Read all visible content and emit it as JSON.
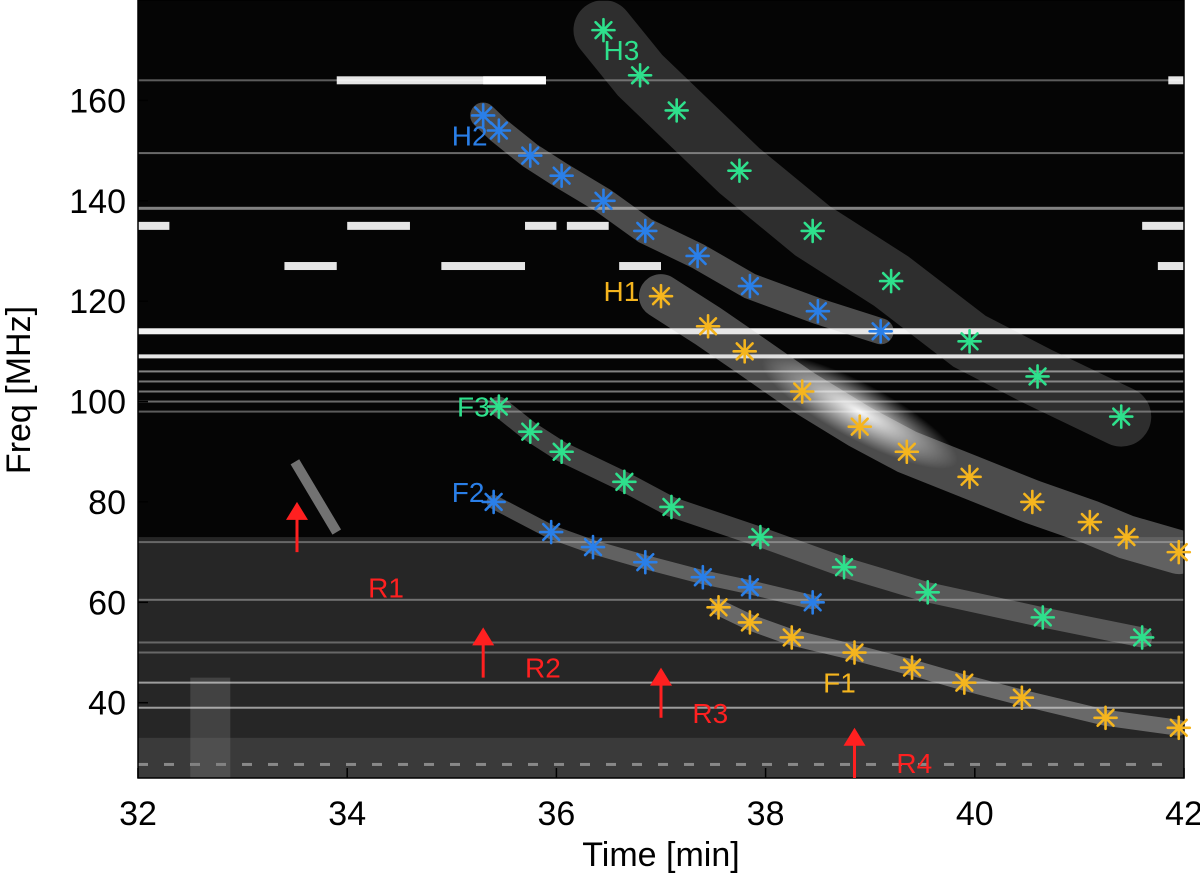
{
  "chart_data": {
    "type": "scatter",
    "title": "",
    "xlabel": "Time [min]",
    "ylabel": "Freq [MHz]",
    "xlim": [
      32,
      42
    ],
    "ylim": [
      25,
      180
    ],
    "xticks": [
      32,
      34,
      36,
      38,
      40,
      42
    ],
    "yticks": [
      40,
      60,
      80,
      100,
      120,
      140,
      160
    ],
    "background": "dynamic spectrum (grayscale)",
    "grid": false,
    "legend": "none",
    "series": [
      {
        "name": "H3",
        "color": "#2ee08c",
        "x": [
          36.45,
          36.8,
          37.15,
          37.75,
          38.45,
          39.2,
          39.95,
          40.6,
          41.4
        ],
        "y": [
          174,
          165,
          158,
          146,
          134,
          124,
          112,
          105,
          97
        ]
      },
      {
        "name": "H2",
        "color": "#2a7fe8",
        "x": [
          35.3,
          35.45,
          35.75,
          36.05,
          36.45,
          36.85,
          37.35,
          37.85,
          38.5,
          39.1
        ],
        "y": [
          157,
          154,
          149,
          145,
          140,
          134,
          129,
          123,
          118,
          114
        ]
      },
      {
        "name": "H1",
        "color": "#f5b51e",
        "x": [
          37.0,
          37.45,
          37.8,
          38.35,
          38.9,
          39.35,
          39.95,
          40.55,
          41.1,
          41.45,
          41.95
        ],
        "y": [
          121,
          115,
          110,
          102,
          95,
          90,
          85,
          80,
          76,
          73,
          70
        ]
      },
      {
        "name": "F3",
        "color": "#2ee08c",
        "x": [
          35.45,
          35.75,
          36.05,
          36.65,
          37.1,
          37.95,
          38.75,
          39.55,
          40.65,
          41.6
        ],
        "y": [
          99,
          94,
          90,
          84,
          79,
          73,
          67,
          62,
          57,
          53
        ]
      },
      {
        "name": "F2",
        "color": "#2a7fe8",
        "x": [
          35.4,
          35.95,
          36.35,
          36.85,
          37.4,
          37.85,
          38.45
        ],
        "y": [
          80,
          74,
          71,
          68,
          65,
          63,
          60
        ]
      },
      {
        "name": "F1",
        "color": "#f5b51e",
        "x": [
          37.55,
          37.85,
          38.25,
          38.85,
          39.4,
          39.9,
          40.45,
          41.25,
          41.95
        ],
        "y": [
          59,
          56,
          53,
          50,
          47,
          44,
          41,
          37,
          35
        ]
      }
    ],
    "annotations": [
      {
        "text": "H3",
        "x": 36.45,
        "y": 168,
        "color": "#2ee08c"
      },
      {
        "text": "H2",
        "x": 35.0,
        "y": 151,
        "color": "#2a7fe8"
      },
      {
        "text": "H1",
        "x": 36.45,
        "y": 120,
        "color": "#f5b51e"
      },
      {
        "text": "F3",
        "x": 35.05,
        "y": 97,
        "color": "#2ee08c"
      },
      {
        "text": "F2",
        "x": 35.0,
        "y": 80,
        "color": "#2a7fe8"
      },
      {
        "text": "F1",
        "x": 38.55,
        "y": 42,
        "color": "#f5b51e"
      },
      {
        "text": "R1",
        "x": 34.2,
        "y": 61,
        "color": "#ff2020"
      },
      {
        "text": "R2",
        "x": 35.7,
        "y": 45,
        "color": "#ff2020"
      },
      {
        "text": "R3",
        "x": 37.3,
        "y": 36,
        "color": "#ff2020"
      },
      {
        "text": "R4",
        "x": 39.25,
        "y": 26,
        "color": "#ff2020"
      }
    ],
    "arrows": [
      {
        "label": "R1",
        "x": 33.52,
        "y_tail": 70,
        "y_head": 80,
        "color": "#ff2020"
      },
      {
        "label": "R2",
        "x": 35.3,
        "y_tail": 45,
        "y_head": 55,
        "color": "#ff2020"
      },
      {
        "label": "R3",
        "x": 37.0,
        "y_tail": 37,
        "y_head": 47,
        "color": "#ff2020"
      },
      {
        "label": "R4",
        "x": 38.85,
        "y_tail": 25,
        "y_head": 35,
        "color": "#ff2020"
      }
    ]
  }
}
